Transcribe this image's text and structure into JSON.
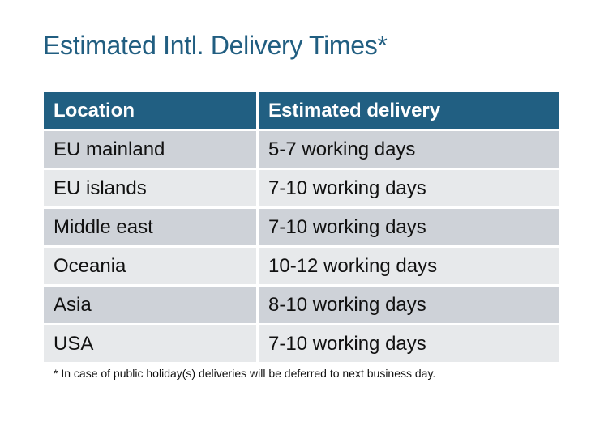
{
  "title": "Estimated Intl. Delivery Times*",
  "table": {
    "headers": [
      "Location",
      "Estimated delivery"
    ],
    "rows": [
      [
        "EU mainland",
        "5-7 working days"
      ],
      [
        "EU islands",
        "7-10 working days"
      ],
      [
        "Middle east",
        "7-10 working days"
      ],
      [
        "Oceania",
        "10-12 working days"
      ],
      [
        "Asia",
        "8-10 working days"
      ],
      [
        "USA",
        "7-10 working days"
      ]
    ]
  },
  "footnote": "* In case of public holiday(s) deliveries will be deferred to next business day.",
  "colors": {
    "header": "#215f82",
    "title": "#215e81",
    "row_odd": "#ced2d8",
    "row_even": "#e7e9eb"
  }
}
